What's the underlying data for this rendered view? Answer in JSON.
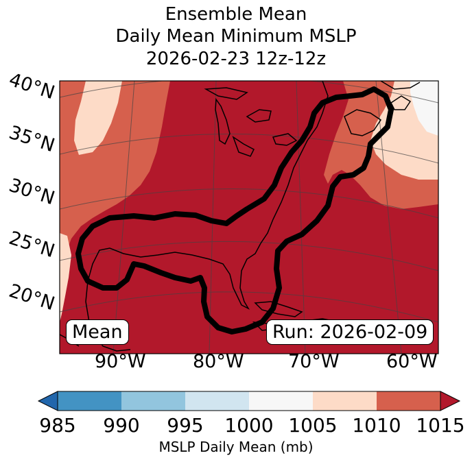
{
  "title": {
    "line1": "Ensemble Mean",
    "line2": "Daily Mean Minimum MSLP",
    "line3": "2026-02-23 12z-12z"
  },
  "map": {
    "lat_labels": [
      "40°N",
      "35°N",
      "30°N",
      "25°N",
      "20°N"
    ],
    "lon_labels": [
      "90°W",
      "80°W",
      "70°W",
      "60°W"
    ],
    "mean_box": "Mean",
    "run_box": "Run: 2026-02-09",
    "colors": {
      "1010_1015": "#b2182b",
      "1005_1010": "#d6604d",
      "1000_1005": "#fddbc7",
      "995_1000": "#f7f7f7",
      "contour": "#000000",
      "coast": "#000000"
    }
  },
  "colorbar": {
    "ticks": [
      "985",
      "990",
      "995",
      "1000",
      "1005",
      "1010",
      "1015"
    ],
    "label": "MSLP Daily Mean (mb)",
    "colors": [
      "#2166ac",
      "#4393c3",
      "#92c5de",
      "#d1e5f0",
      "#f7f7f7",
      "#fddbc7",
      "#d6604d",
      "#b2182b"
    ]
  }
}
